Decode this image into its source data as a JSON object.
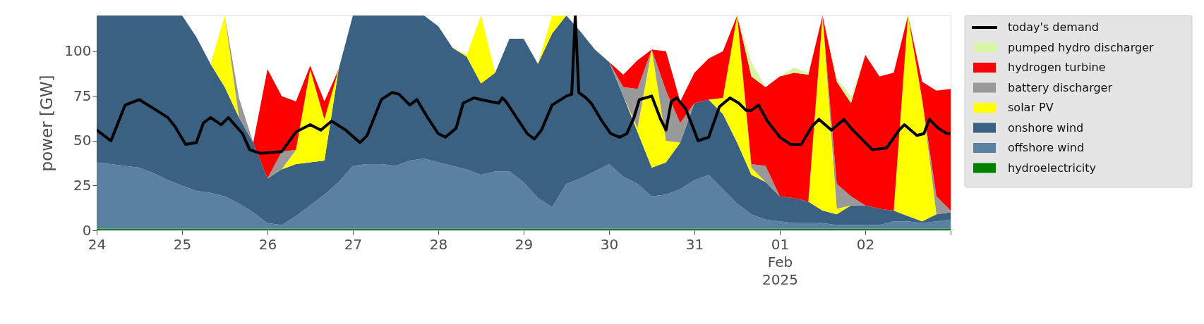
{
  "chart_data": {
    "type": "area",
    "ylabel": "power [GW]",
    "ylim": [
      0,
      120
    ],
    "yticks": [
      0,
      25,
      50,
      75,
      100
    ],
    "xlim": [
      "2025-01-24T00:00",
      "2025-02-03T00:00"
    ],
    "xticks": [
      {
        "value": "2025-01-24T00:00",
        "label": "24"
      },
      {
        "value": "2025-01-25T00:00",
        "label": "25"
      },
      {
        "value": "2025-01-26T00:00",
        "label": "26"
      },
      {
        "value": "2025-01-27T00:00",
        "label": "27"
      },
      {
        "value": "2025-01-28T00:00",
        "label": "28"
      },
      {
        "value": "2025-01-29T00:00",
        "label": "29"
      },
      {
        "value": "2025-01-30T00:00",
        "label": "30"
      },
      {
        "value": "2025-01-31T00:00",
        "label": "31"
      },
      {
        "value": "2025-02-01T00:00",
        "label": "01\nFeb\n2025"
      },
      {
        "value": "2025-02-02T00:00",
        "label": "02"
      },
      {
        "value": "2025-02-03T00:00",
        "label": null
      }
    ],
    "grid": false,
    "legend": "right",
    "stacked": true,
    "marker": "none",
    "line_style": "solid",
    "x": [
      "2025-01-24T00:00",
      "2025-01-24T04:00",
      "2025-01-24T08:00",
      "2025-01-24T12:00",
      "2025-01-24T16:00",
      "2025-01-24T20:00",
      "2025-01-25T00:00",
      "2025-01-25T04:00",
      "2025-01-25T08:00",
      "2025-01-25T12:00",
      "2025-01-25T16:00",
      "2025-01-25T20:00",
      "2025-01-26T00:00",
      "2025-01-26T04:00",
      "2025-01-26T08:00",
      "2025-01-26T12:00",
      "2025-01-26T16:00",
      "2025-01-26T20:00",
      "2025-01-27T00:00",
      "2025-01-27T04:00",
      "2025-01-27T08:00",
      "2025-01-27T12:00",
      "2025-01-27T16:00",
      "2025-01-27T20:00",
      "2025-01-28T00:00",
      "2025-01-28T04:00",
      "2025-01-28T08:00",
      "2025-01-28T12:00",
      "2025-01-28T16:00",
      "2025-01-28T20:00",
      "2025-01-29T00:00",
      "2025-01-29T04:00",
      "2025-01-29T08:00",
      "2025-01-29T12:00",
      "2025-01-29T16:00",
      "2025-01-29T20:00",
      "2025-01-30T00:00",
      "2025-01-30T04:00",
      "2025-01-30T08:00",
      "2025-01-30T12:00",
      "2025-01-30T16:00",
      "2025-01-30T20:00",
      "2025-01-31T00:00",
      "2025-01-31T04:00",
      "2025-01-31T08:00",
      "2025-01-31T12:00",
      "2025-01-31T16:00",
      "2025-01-31T20:00",
      "2025-02-01T00:00",
      "2025-02-01T04:00",
      "2025-02-01T08:00",
      "2025-02-01T12:00",
      "2025-02-01T16:00",
      "2025-02-01T20:00",
      "2025-02-02T00:00",
      "2025-02-02T04:00",
      "2025-02-02T08:00",
      "2025-02-02T12:00",
      "2025-02-02T16:00",
      "2025-02-02T20:00",
      "2025-02-03T00:00"
    ],
    "series": [
      {
        "name": "hydroelectricity",
        "type": "area",
        "color": "#008000",
        "values": [
          1,
          1,
          1,
          1,
          1,
          1,
          1,
          1,
          1,
          1,
          1,
          1,
          1,
          1,
          1,
          1,
          1,
          1,
          1,
          1,
          1,
          1,
          1,
          1,
          1,
          1,
          1,
          1,
          1,
          1,
          1,
          1,
          1,
          1,
          1,
          1,
          1,
          1,
          1,
          1,
          1,
          1,
          1,
          1,
          1,
          1,
          1,
          1,
          1,
          1,
          1,
          1,
          1,
          1,
          1,
          1,
          1,
          1,
          1,
          1,
          1
        ]
      },
      {
        "name": "offshore wind",
        "type": "area",
        "color": "#5b81a2",
        "values": [
          37,
          36,
          35,
          34,
          31,
          27,
          24,
          21,
          20,
          18,
          14,
          9,
          3,
          2,
          7,
          13,
          19,
          26,
          35,
          36,
          36,
          35,
          38,
          39,
          37,
          35,
          33,
          30,
          32,
          32,
          26,
          17,
          12,
          25,
          28,
          32,
          36,
          29,
          25,
          18,
          19,
          22,
          27,
          30,
          22,
          14,
          8,
          5,
          4,
          3,
          3,
          3,
          2,
          2,
          2,
          2,
          4,
          4,
          3,
          4,
          5
        ]
      },
      {
        "name": "onshore wind",
        "type": "area",
        "color": "#3b6182",
        "values": [
          82,
          83,
          84,
          85,
          88,
          92,
          95,
          86,
          72,
          61,
          48,
          39,
          25,
          31,
          29,
          24,
          19,
          63,
          84,
          83,
          83,
          84,
          81,
          80,
          76,
          66,
          63,
          51,
          55,
          74,
          80,
          75,
          97,
          94,
          82,
          68,
          57,
          45,
          29,
          16,
          18,
          26,
          43,
          42,
          42,
          34,
          22,
          21,
          14,
          14,
          12,
          7,
          6,
          11,
          11,
          9,
          6,
          3,
          1,
          4,
          4
        ]
      },
      {
        "name": "solar PV",
        "type": "area",
        "color": "#ffff00",
        "values": [
          0,
          0,
          0,
          0,
          0,
          0,
          0,
          0,
          0,
          40,
          0,
          0,
          0,
          0,
          8,
          52,
          23,
          0,
          0,
          0,
          0,
          0,
          0,
          0,
          0,
          0,
          1,
          38,
          0,
          0,
          0,
          0,
          10,
          0,
          0,
          0,
          0,
          0,
          2,
          66,
          12,
          0,
          0,
          0,
          9,
          71,
          4,
          0,
          0,
          0,
          0,
          109,
          3,
          0,
          0,
          0,
          0,
          112,
          68,
          0,
          0
        ]
      },
      {
        "name": "battery discharger",
        "type": "area",
        "color": "#999999",
        "values": [
          0,
          0,
          0,
          0,
          0,
          0,
          0,
          0,
          0,
          0,
          11,
          0,
          0,
          10,
          0,
          0,
          0,
          0,
          0,
          0,
          0,
          0,
          0,
          0,
          0,
          0,
          0,
          0,
          0,
          0,
          0,
          0,
          0,
          0,
          0,
          0,
          0,
          5,
          22,
          0,
          28,
          11,
          0,
          0,
          0,
          0,
          2,
          9,
          0,
          0,
          0,
          0,
          14,
          5,
          0,
          0,
          0,
          0,
          0,
          10,
          1
        ]
      },
      {
        "name": "hydrogen turbine",
        "type": "area",
        "color": "#ff0000",
        "values": [
          0,
          0,
          0,
          0,
          0,
          0,
          0,
          0,
          0,
          0,
          0,
          0,
          61,
          31,
          27,
          2,
          10,
          0,
          0,
          0,
          0,
          0,
          0,
          0,
          0,
          0,
          0,
          0,
          0,
          0,
          0,
          0,
          0,
          0,
          0,
          0,
          0,
          7,
          16,
          0,
          22,
          12,
          17,
          23,
          26,
          0,
          49,
          44,
          67,
          70,
          71,
          0,
          57,
          52,
          84,
          74,
          77,
          0,
          10,
          59,
          68
        ]
      },
      {
        "name": "pumped hydro discharger",
        "type": "area",
        "color": "#d9f5a6",
        "values": [
          0,
          0,
          0,
          0,
          0,
          0,
          0,
          0,
          0,
          0,
          0,
          0,
          0,
          0,
          0,
          0,
          0,
          0,
          0,
          0,
          0,
          0,
          0,
          0,
          0,
          0,
          0,
          0,
          0,
          0,
          0,
          0,
          0,
          0,
          0,
          0,
          0,
          0,
          0,
          0,
          0,
          0,
          0,
          0,
          0,
          0,
          8,
          0,
          0,
          3,
          1,
          0,
          2,
          4,
          0,
          0,
          0,
          0,
          0,
          0,
          0
        ]
      },
      {
        "name": "today's demand",
        "type": "line",
        "color": "#000000",
        "x": [
          "2025-01-24T00:00",
          "2025-01-24T04:00",
          "2025-01-24T08:00",
          "2025-01-24T12:00",
          "2025-01-24T16:00",
          "2025-01-24T20:00",
          "2025-01-24T22:00",
          "2025-01-25T01:00",
          "2025-01-25T04:00",
          "2025-01-25T06:00",
          "2025-01-25T08:00",
          "2025-01-25T11:00",
          "2025-01-25T13:00",
          "2025-01-25T17:00",
          "2025-01-25T19:00",
          "2025-01-25T22:00",
          "2025-01-26T04:00",
          "2025-01-26T08:00",
          "2025-01-26T12:00",
          "2025-01-26T15:00",
          "2025-01-26T18:00",
          "2025-01-26T22:00",
          "2025-01-27T02:00",
          "2025-01-27T04:00",
          "2025-01-27T08:00",
          "2025-01-27T11:00",
          "2025-01-27T13:00",
          "2025-01-27T16:00",
          "2025-01-27T18:00",
          "2025-01-27T21:00",
          "2025-01-28T00:00",
          "2025-01-28T02:00",
          "2025-01-28T05:00",
          "2025-01-28T07:00",
          "2025-01-28T10:00",
          "2025-01-28T12:00",
          "2025-01-28T17:00",
          "2025-01-28T18:00",
          "2025-01-28T19:00",
          "2025-01-28T22:00",
          "2025-01-29T01:00",
          "2025-01-29T03:00",
          "2025-01-29T05:00",
          "2025-01-29T08:00",
          "2025-01-29T12:00",
          "2025-01-29T13:30",
          "2025-01-29T14:30",
          "2025-01-29T15:30",
          "2025-01-29T17:30",
          "2025-01-29T19:00",
          "2025-01-29T22:00",
          "2025-01-30T00:30",
          "2025-01-30T03:00",
          "2025-01-30T05:00",
          "2025-01-30T07:00",
          "2025-01-30T08:30",
          "2025-01-30T12:00",
          "2025-01-30T14:30",
          "2025-01-30T16:00",
          "2025-01-30T17:30",
          "2025-01-30T19:00",
          "2025-01-30T21:30",
          "2025-01-30T23:30",
          "2025-01-31T01:00",
          "2025-01-31T04:00",
          "2025-01-31T07:00",
          "2025-01-31T10:00",
          "2025-01-31T12:30",
          "2025-01-31T14:30",
          "2025-01-31T16:00",
          "2025-01-31T18:00",
          "2025-01-31T20:30",
          "2025-02-01T00:00",
          "2025-02-01T03:00",
          "2025-02-01T06:00",
          "2025-02-01T09:00",
          "2025-02-01T11:00",
          "2025-02-01T14:30",
          "2025-02-01T18:00",
          "2025-02-01T20:30",
          "2025-02-02T02:00",
          "2025-02-02T06:00",
          "2025-02-02T09:30",
          "2025-02-02T11:00",
          "2025-02-02T14:30",
          "2025-02-02T16:30",
          "2025-02-02T18:00",
          "2025-02-02T20:30",
          "2025-02-02T23:00",
          "2025-02-03T00:00"
        ],
        "values": [
          56,
          50,
          70,
          73,
          68,
          63,
          58,
          48,
          49,
          60,
          63,
          59,
          63,
          54,
          45,
          43,
          44,
          55,
          59,
          56,
          61,
          56,
          49,
          53,
          73,
          77,
          76,
          70,
          73,
          63,
          54,
          52,
          57,
          71,
          74,
          73,
          71,
          74,
          72,
          63,
          54,
          51,
          56,
          70,
          75,
          76,
          120,
          77,
          74,
          71,
          61,
          54,
          52,
          54,
          63,
          73,
          75,
          62,
          56,
          72,
          74,
          68,
          58,
          50,
          52,
          69,
          74,
          71,
          67,
          67,
          70,
          61,
          52,
          48,
          48,
          58,
          62,
          56,
          62,
          56,
          45,
          46,
          56,
          59,
          53,
          54,
          62,
          57,
          54,
          54
        ]
      }
    ]
  }
}
